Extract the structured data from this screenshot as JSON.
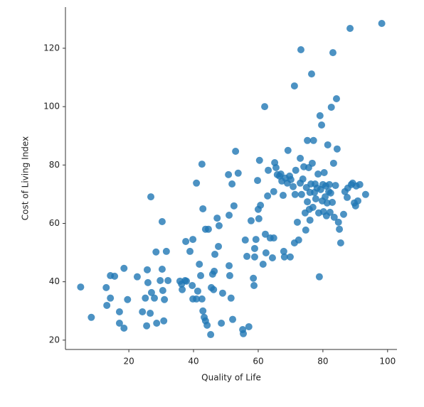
{
  "chart_data": {
    "type": "scatter",
    "color": "#1f77b4",
    "x_label": "Quality of Life",
    "y_label": "Cost of Living Index",
    "xlim": [
      0.4,
      102.9
    ],
    "ylim": [
      16.8,
      134.1
    ],
    "xticks": [
      20,
      40,
      60,
      80,
      100
    ],
    "yticks": [
      20,
      40,
      60,
      80,
      100,
      120
    ],
    "x": [
      5.1,
      8.4,
      13.0,
      14.3,
      15.6,
      13.2,
      14.3,
      17.1,
      17.1,
      18.5,
      18.5,
      19.6,
      22.6,
      24.2,
      25.1,
      25.7,
      25.9,
      25.5,
      26.6,
      26.8,
      27.0,
      27.9,
      28.4,
      28.6,
      29.7,
      30.3,
      30.5,
      31.0,
      30.8,
      30.3,
      31.6,
      32.1,
      35.8,
      36.3,
      36.5,
      37.4,
      37.8,
      37.6,
      38.9,
      39.8,
      39.6,
      39.8,
      40.9,
      40.9,
      41.3,
      41.8,
      42.2,
      42.6,
      42.9,
      42.6,
      42.9,
      43.3,
      43.7,
      43.7,
      44.2,
      44.6,
      45.3,
      45.5,
      45.9,
      46.2,
      46.4,
      46.6,
      47.3,
      47.7,
      47.9,
      48.6,
      49.0,
      50.8,
      51.0,
      51.0,
      51.2,
      51.6,
      51.9,
      52.1,
      52.5,
      53.0,
      53.8,
      55.2,
      55.4,
      56.0,
      56.5,
      57.1,
      57.8,
      58.5,
      58.7,
      58.9,
      58.9,
      59.3,
      59.8,
      60.0,
      60.2,
      60.4,
      60.7,
      61.5,
      62.0,
      62.2,
      62.4,
      62.9,
      63.1,
      63.7,
      64.4,
      64.8,
      64.8,
      65.1,
      65.5,
      65.9,
      66.6,
      67.0,
      67.3,
      67.7,
      67.9,
      68.1,
      68.4,
      69.0,
      69.2,
      69.7,
      69.9,
      70.1,
      70.8,
      71.2,
      71.2,
      71.4,
      71.6,
      72.1,
      72.5,
      73.0,
      73.2,
      73.0,
      73.4,
      73.8,
      74.1,
      74.5,
      74.7,
      74.9,
      75.2,
      75.2,
      75.6,
      75.8,
      76.0,
      76.0,
      76.3,
      76.5,
      76.7,
      76.9,
      77.1,
      77.4,
      77.6,
      77.8,
      78.2,
      78.5,
      78.7,
      78.9,
      79.1,
      79.3,
      79.6,
      79.8,
      80.0,
      80.2,
      80.4,
      80.7,
      80.9,
      81.1,
      81.3,
      81.5,
      81.8,
      82.0,
      82.2,
      82.4,
      82.6,
      82.9,
      83.1,
      83.3,
      83.5,
      83.9,
      84.2,
      84.4,
      84.8,
      85.1,
      85.5,
      86.4,
      86.8,
      87.5,
      87.7,
      88.4,
      88.8,
      89.2,
      89.7,
      90.1,
      90.3,
      90.8,
      91.4,
      93.2,
      98.2
    ],
    "y": [
      38.2,
      27.8,
      38.0,
      42.1,
      41.9,
      31.9,
      34.4,
      29.7,
      25.8,
      24.1,
      44.6,
      33.9,
      41.7,
      29.7,
      34.4,
      44.1,
      39.7,
      24.9,
      29.2,
      69.1,
      36.3,
      34.4,
      50.2,
      25.8,
      40.4,
      44.3,
      37.0,
      33.9,
      26.6,
      60.6,
      50.4,
      40.4,
      40.2,
      39.2,
      37.3,
      40.4,
      40.2,
      53.8,
      50.4,
      54.5,
      38.7,
      34.1,
      34.1,
      73.8,
      36.8,
      46.0,
      42.1,
      80.3,
      65.0,
      34.1,
      30.0,
      27.8,
      58.0,
      26.6,
      25.1,
      58.0,
      21.9,
      38.0,
      42.6,
      37.3,
      43.6,
      49.4,
      61.8,
      52.1,
      59.2,
      25.8,
      36.1,
      76.7,
      45.5,
      62.8,
      42.1,
      34.4,
      73.5,
      27.1,
      66.0,
      84.7,
      77.2,
      23.6,
      22.2,
      54.3,
      48.7,
      24.6,
      60.9,
      41.2,
      38.7,
      51.4,
      48.5,
      54.5,
      74.7,
      64.8,
      61.6,
      81.6,
      66.2,
      46.0,
      100.0,
      56.3,
      49.9,
      69.4,
      78.2,
      55.0,
      48.2,
      55.0,
      70.9,
      80.8,
      79.1,
      76.7,
      76.2,
      76.9,
      74.5,
      69.6,
      50.4,
      48.5,
      75.5,
      73.8,
      85.0,
      76.2,
      48.5,
      75.0,
      72.6,
      107.1,
      53.3,
      69.9,
      78.2,
      60.4,
      54.3,
      73.8,
      119.5,
      82.3,
      69.9,
      75.2,
      79.4,
      63.6,
      57.7,
      72.3,
      88.4,
      67.4,
      79.1,
      64.8,
      61.1,
      70.6,
      73.5,
      111.2,
      80.6,
      65.5,
      88.4,
      70.6,
      73.5,
      68.4,
      72.1,
      76.9,
      63.6,
      41.7,
      96.9,
      71.6,
      93.7,
      67.7,
      73.3,
      64.0,
      77.4,
      69.1,
      72.8,
      62.6,
      67.0,
      86.9,
      70.9,
      73.3,
      63.8,
      70.4,
      99.8,
      67.2,
      118.5,
      80.6,
      62.1,
      73.0,
      102.7,
      85.5,
      60.4,
      58.0,
      53.3,
      63.1,
      70.9,
      68.9,
      72.1,
      126.8,
      73.3,
      73.8,
      67.0,
      66.0,
      72.8,
      67.7,
      73.3,
      69.9,
      128.5
    ]
  }
}
